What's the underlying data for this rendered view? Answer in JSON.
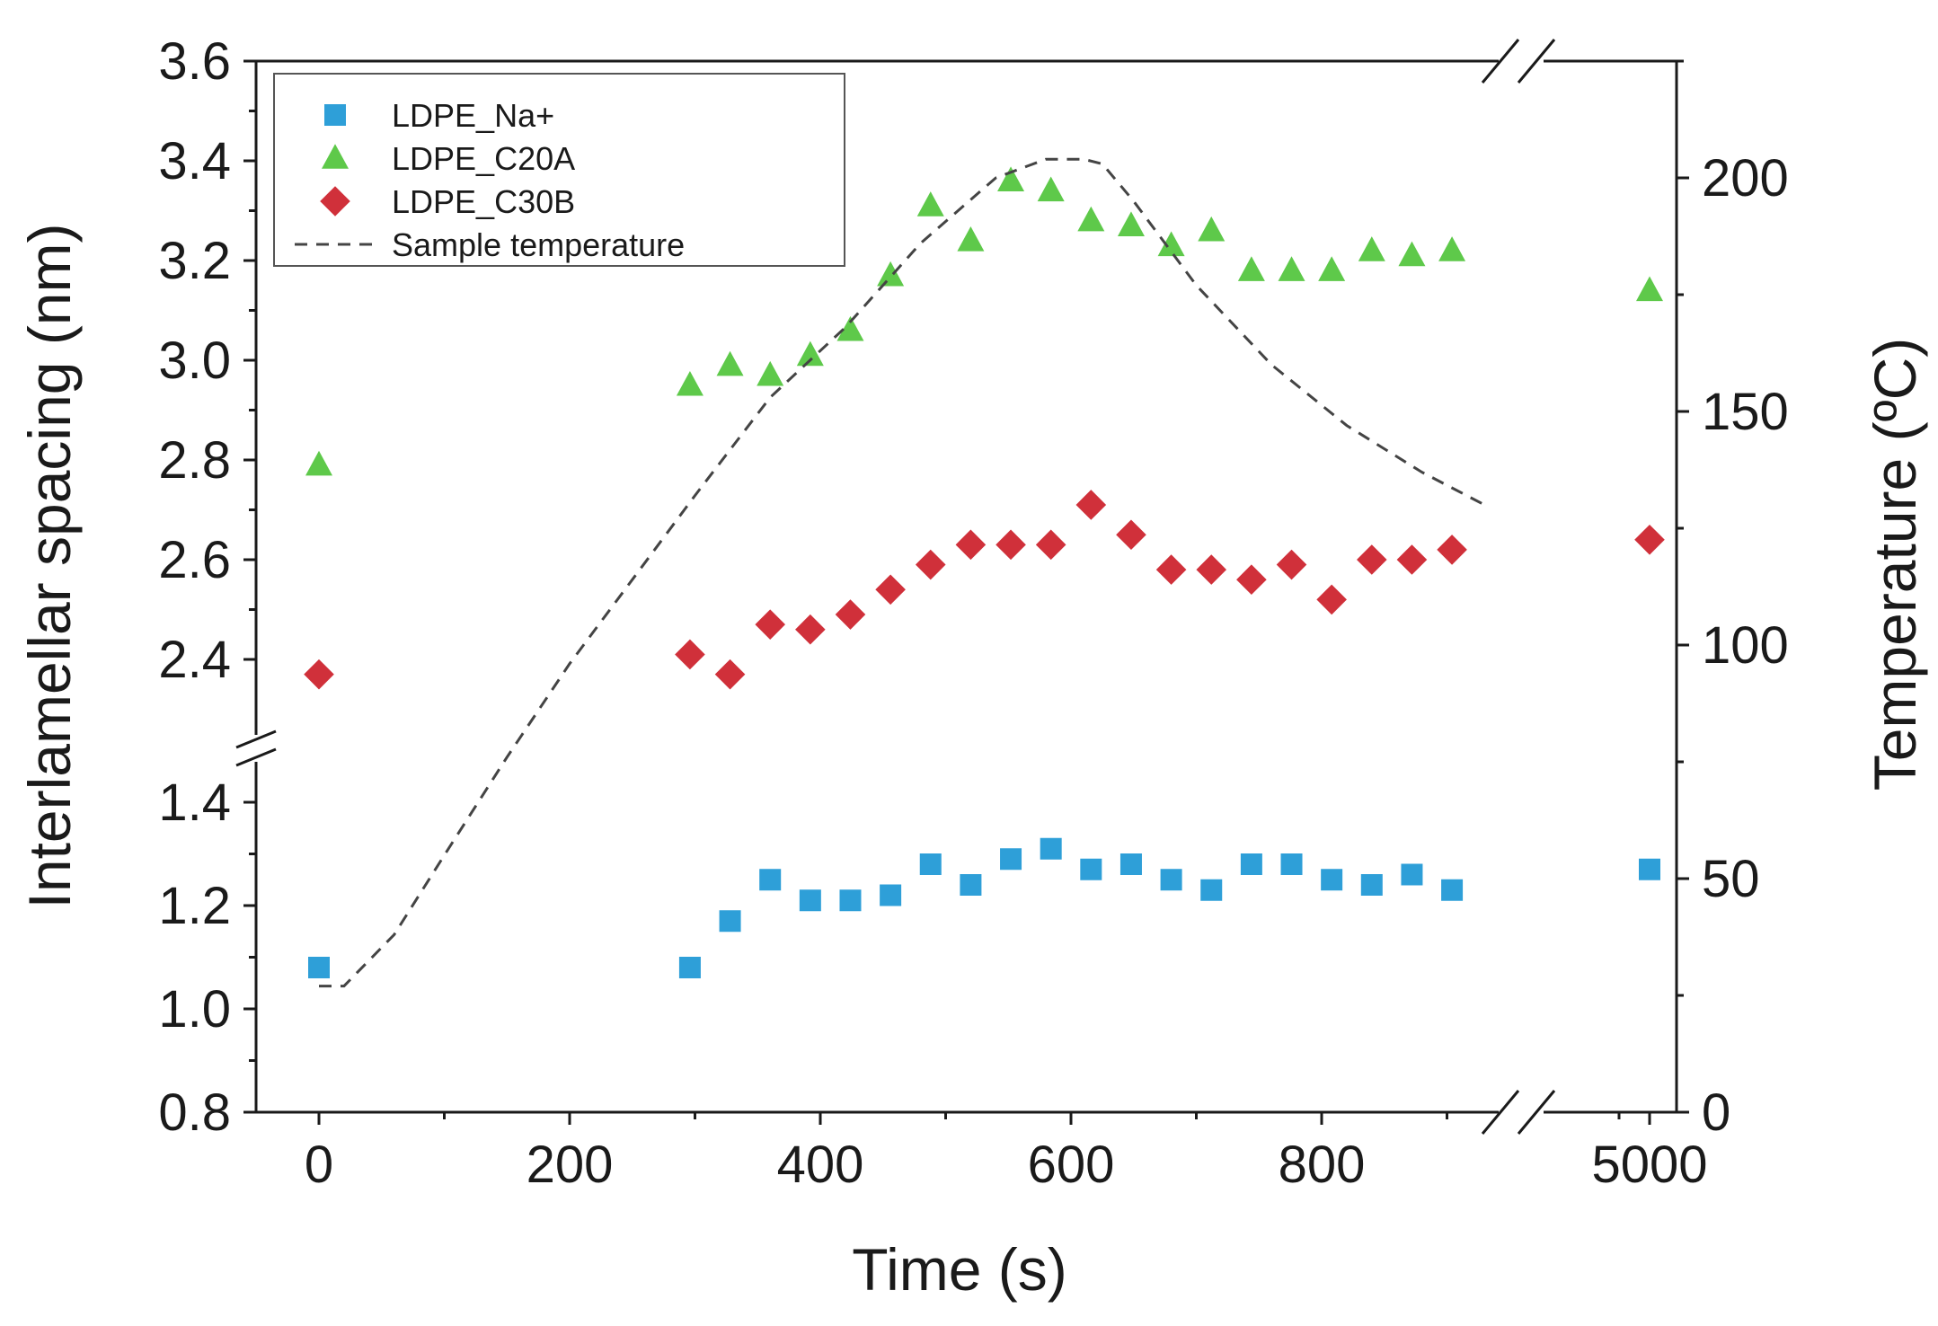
{
  "chart_data": {
    "type": "scatter",
    "xlabel": "Time (s)",
    "ylabel_left": "Interlamellar spacing (nm)",
    "ylabel_right": "Temperature (ºC)",
    "x_ticks": [
      {
        "value": 0,
        "label": "0"
      },
      {
        "value": 200,
        "label": "200"
      },
      {
        "value": 400,
        "label": "400"
      },
      {
        "value": 600,
        "label": "600"
      },
      {
        "value": 800,
        "label": "800"
      },
      {
        "value": 5000,
        "label": "5000"
      }
    ],
    "x_break": {
      "from": 930,
      "to": 4800
    },
    "y_left_ticks_upper": [
      "2.4",
      "2.6",
      "2.8",
      "3.0",
      "3.2",
      "3.4",
      "3.6"
    ],
    "y_left_ticks_lower": [
      "0.8",
      "1.0",
      "1.2",
      "1.4"
    ],
    "y_left_break": {
      "from": 1.5,
      "to": 2.3
    },
    "y_right_ticks": [
      "0",
      "50",
      "100",
      "150",
      "200"
    ],
    "y_right_range": [
      0,
      225
    ],
    "legend": [
      {
        "label": "LDPE_Na+",
        "marker": "square",
        "color": "#2e9fd8"
      },
      {
        "label": "LDPE_C20A",
        "marker": "triangle",
        "color": "#5ec94a"
      },
      {
        "label": "LDPE_C30B",
        "marker": "diamond",
        "color": "#d0303a"
      },
      {
        "label": "Sample temperature",
        "marker": "dash",
        "color": "#444444"
      }
    ],
    "series": [
      {
        "name": "LDPE_Na+",
        "x": [
          0,
          296,
          328,
          360,
          392,
          424,
          456,
          488,
          520,
          552,
          584,
          616,
          648,
          680,
          712,
          744,
          776,
          808,
          840,
          872,
          904,
          5000
        ],
        "y": [
          1.08,
          1.08,
          1.17,
          1.25,
          1.21,
          1.21,
          1.22,
          1.28,
          1.24,
          1.29,
          1.31,
          1.27,
          1.28,
          1.25,
          1.23,
          1.28,
          1.28,
          1.25,
          1.24,
          1.26,
          1.23,
          1.27
        ]
      },
      {
        "name": "LDPE_C20A",
        "x": [
          0,
          296,
          328,
          360,
          392,
          424,
          456,
          488,
          520,
          552,
          584,
          616,
          648,
          680,
          712,
          744,
          776,
          808,
          840,
          872,
          904,
          5000
        ],
        "y": [
          2.79,
          2.95,
          2.99,
          2.97,
          3.01,
          3.06,
          3.17,
          3.31,
          3.24,
          3.36,
          3.34,
          3.28,
          3.27,
          3.23,
          3.26,
          3.18,
          3.18,
          3.18,
          3.22,
          3.21,
          3.22,
          3.14
        ]
      },
      {
        "name": "LDPE_C30B",
        "x": [
          0,
          296,
          328,
          360,
          392,
          424,
          456,
          488,
          520,
          552,
          584,
          616,
          648,
          680,
          712,
          744,
          776,
          808,
          840,
          872,
          904,
          5000
        ],
        "y": [
          2.37,
          2.41,
          2.37,
          2.47,
          2.46,
          2.49,
          2.54,
          2.59,
          2.63,
          2.63,
          2.63,
          2.71,
          2.65,
          2.58,
          2.58,
          2.56,
          2.59,
          2.52,
          2.6,
          2.6,
          2.62,
          2.64
        ]
      },
      {
        "name": "Sample temperature",
        "axis": "right",
        "style": "dashed",
        "x": [
          0,
          20,
          60,
          100,
          150,
          200,
          250,
          300,
          360,
          420,
          480,
          540,
          580,
          610,
          625,
          650,
          700,
          760,
          820,
          880,
          930
        ],
        "y": [
          27,
          27,
          38,
          55,
          76,
          96,
          114,
          132,
          153,
          168,
          186,
          200,
          204,
          204,
          203,
          195,
          177,
          160,
          147,
          137,
          130
        ]
      }
    ]
  }
}
